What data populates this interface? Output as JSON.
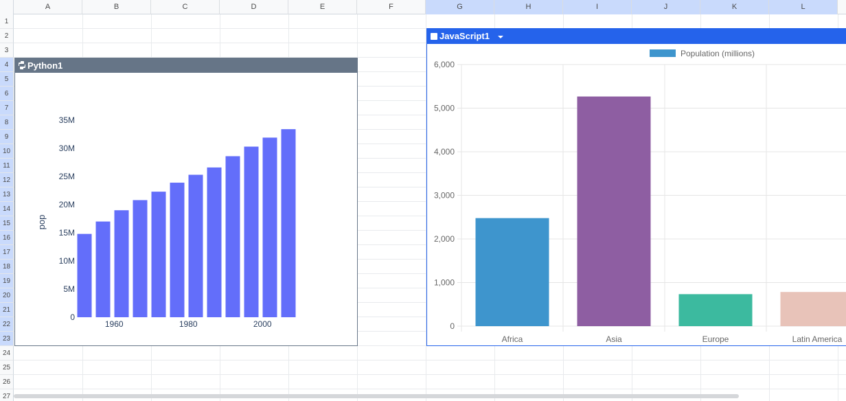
{
  "columns": [
    "A",
    "B",
    "C",
    "D",
    "E",
    "F",
    "G",
    "H",
    "I",
    "J",
    "K",
    "L"
  ],
  "selected_columns": [
    "G",
    "H",
    "I",
    "J",
    "K",
    "L"
  ],
  "rows": [
    "1",
    "2",
    "3",
    "4",
    "5",
    "6",
    "7",
    "8",
    "9",
    "10",
    "11",
    "12",
    "13",
    "14",
    "15",
    "16",
    "17",
    "18",
    "19",
    "20",
    "21",
    "22",
    "23",
    "24",
    "25",
    "26",
    "27"
  ],
  "selected_rows": [
    "4",
    "5",
    "6",
    "7",
    "8",
    "9",
    "10",
    "11",
    "12",
    "13",
    "14",
    "15",
    "16",
    "17",
    "18",
    "19",
    "20",
    "21",
    "22",
    "23"
  ],
  "python_widget": {
    "title": "Python1",
    "icon": "python-icon",
    "title_bg": "#667587"
  },
  "js_widget": {
    "title": "JavaScript1",
    "icon": "javascript-icon",
    "title_bg": "#2563eb"
  },
  "chart_data": [
    {
      "type": "bar",
      "ylabel": "pop",
      "xlabel": "",
      "x": [
        1952,
        1957,
        1962,
        1967,
        1972,
        1977,
        1982,
        1987,
        1992,
        1997,
        2002,
        2007
      ],
      "values": [
        14.8,
        17.0,
        19.0,
        20.8,
        22.3,
        23.9,
        25.3,
        26.6,
        28.6,
        30.3,
        31.9,
        33.4
      ],
      "value_unit": "M",
      "x_ticks": [
        "1960",
        "1980",
        "2000"
      ],
      "y_ticks": [
        "0",
        "5M",
        "10M",
        "15M",
        "20M",
        "25M",
        "30M",
        "35M"
      ],
      "ylim": [
        0,
        35
      ],
      "color": "#636efa"
    },
    {
      "type": "bar",
      "legend": "Population (millions)",
      "legend_color": "#3e95cd",
      "categories": [
        "Africa",
        "Asia",
        "Europe",
        "Latin America"
      ],
      "values": [
        2478,
        5267,
        734,
        784
      ],
      "colors": [
        "#3e95cd",
        "#8e5ea2",
        "#3cba9f",
        "#e8c3b9"
      ],
      "y_ticks": [
        "0",
        "1,000",
        "2,000",
        "3,000",
        "4,000",
        "5,000",
        "6,000"
      ],
      "ylim": [
        0,
        6000
      ],
      "grid": true
    }
  ]
}
